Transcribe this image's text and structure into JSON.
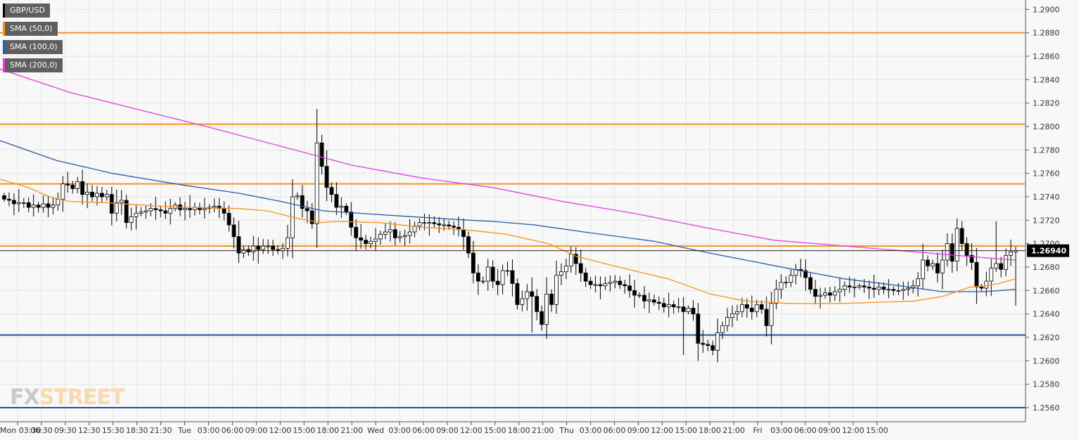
{
  "legend": [
    {
      "label": "GBP/USD",
      "color": "#000000"
    },
    {
      "label": "SMA (50,0)",
      "color": "#f7931e"
    },
    {
      "label": "SMA (100,0)",
      "color": "#2a5aa8"
    },
    {
      "label": "SMA (200,0)",
      "color": "#e040e0"
    }
  ],
  "watermark": {
    "fx": "FX",
    "street": "STREET"
  },
  "colors": {
    "background": "#f8f8f8",
    "grid": "#e4e4e4",
    "candle_outline": "#000000",
    "bull_fill": "#ffffff",
    "bear_fill": "#000000",
    "sma50": "#f7931e",
    "sma100": "#2a5aa8",
    "sma200": "#e040e0",
    "resistance": "#f7931e",
    "support": "#1f4e9c",
    "last_price_bg": "#000000"
  },
  "chart_data": {
    "type": "candlestick",
    "symbol": "GBP/USD",
    "ylim": [
      1.2548,
      1.2908
    ],
    "y_ticks": [
      "1.2560",
      "1.2580",
      "1.2600",
      "1.2620",
      "1.2640",
      "1.2660",
      "1.2680",
      "1.2700",
      "1.2720",
      "1.2740",
      "1.2760",
      "1.2780",
      "1.2800",
      "1.2820",
      "1.2840",
      "1.2860",
      "1.2880",
      "1.2900"
    ],
    "x_ticks": [
      "Mon 03:30",
      "06:30",
      "09:30",
      "12:30",
      "15:30",
      "18:30",
      "21:30",
      "Tue",
      "03:00",
      "06:00",
      "09:00",
      "12:00",
      "15:00",
      "18:00",
      "21:00",
      "Wed",
      "03:00",
      "06:00",
      "09:00",
      "12:00",
      "15:00",
      "18:00",
      "21:00",
      "Thu",
      "03:00",
      "06:00",
      "09:00",
      "12:00",
      "15:00",
      "18:00",
      "21:00",
      "Fri",
      "03:00",
      "06:00",
      "09:00",
      "12:00",
      "15:00"
    ],
    "last_price": "1.26940",
    "last_value": 1.2694,
    "horizontal_levels": [
      {
        "value": 1.288,
        "kind": "resistance"
      },
      {
        "value": 1.2802,
        "kind": "resistance"
      },
      {
        "value": 1.2751,
        "kind": "resistance"
      },
      {
        "value": 1.2698,
        "kind": "resistance"
      },
      {
        "value": 1.2622,
        "kind": "support"
      },
      {
        "value": 1.256,
        "kind": "support"
      }
    ],
    "path": [
      1.2738,
      1.2737,
      1.2734,
      1.2735,
      1.2735,
      1.2731,
      1.2733,
      1.2731,
      1.2734,
      1.2731,
      1.2733,
      1.2738,
      1.2751,
      1.275,
      1.2747,
      1.2753,
      1.2742,
      1.2744,
      1.274,
      1.2743,
      1.274,
      1.2742,
      1.2726,
      1.2735,
      1.2737,
      1.2718,
      1.2723,
      1.2726,
      1.2727,
      1.2728,
      1.273,
      1.2729,
      1.2728,
      1.2726,
      1.273,
      1.2733,
      1.2729,
      1.273,
      1.2729,
      1.2731,
      1.2729,
      1.273,
      1.2731,
      1.2732,
      1.273,
      1.2726,
      1.2716,
      1.2706,
      1.2692,
      1.2695,
      1.2693,
      1.2698,
      1.2695,
      1.2698,
      1.2698,
      1.2695,
      1.2694,
      1.2696,
      1.2705,
      1.274,
      1.2741,
      1.273,
      1.2728,
      1.2717,
      1.2786,
      1.2766,
      1.2748,
      1.2742,
      1.2731,
      1.2732,
      1.2727,
      1.2714,
      1.2705,
      1.2703,
      1.27,
      1.2702,
      1.2704,
      1.2708,
      1.271,
      1.2712,
      1.2705,
      1.2706,
      1.2707,
      1.271,
      1.2715,
      1.2718,
      1.2718,
      1.2718,
      1.2717,
      1.2716,
      1.2716,
      1.2715,
      1.2714,
      1.2712,
      1.2706,
      1.2692,
      1.2675,
      1.2668,
      1.2668,
      1.268,
      1.2668,
      1.2665,
      1.2677,
      1.2677,
      1.2666,
      1.2648,
      1.2653,
      1.2659,
      1.2655,
      1.2642,
      1.2631,
      1.2657,
      1.2648,
      1.2673,
      1.2676,
      1.2681,
      1.2691,
      1.2683,
      1.2675,
      1.2668,
      1.2665,
      1.2665,
      1.2664,
      1.2666,
      1.2667,
      1.2668,
      1.2665,
      1.2664,
      1.266,
      1.2656,
      1.2656,
      1.2651,
      1.2652,
      1.265,
      1.2649,
      1.2646,
      1.2648,
      1.2646,
      1.2646,
      1.2642,
      1.2645,
      1.264,
      1.2615,
      1.2614,
      1.2613,
      1.2609,
      1.2624,
      1.263,
      1.2637,
      1.264,
      1.2642,
      1.2648,
      1.2645,
      1.2642,
      1.2648,
      1.2644,
      1.263,
      1.2649,
      1.2661,
      1.2667,
      1.2667,
      1.2673,
      1.2678,
      1.2677,
      1.2671,
      1.2661,
      1.2655,
      1.2656,
      1.2658,
      1.2656,
      1.2659,
      1.2661,
      1.2664,
      1.2663,
      1.2663,
      1.2664,
      1.2663,
      1.2662,
      1.2661,
      1.2663,
      1.2661,
      1.2661,
      1.266,
      1.266,
      1.2661,
      1.2662,
      1.2664,
      1.267,
      1.2686,
      1.2681,
      1.2683,
      1.2675,
      1.2686,
      1.27,
      1.2685,
      1.2713,
      1.27,
      1.269,
      1.2684,
      1.2663,
      1.2662,
      1.2668,
      1.2679,
      1.2683,
      1.2678,
      1.269,
      1.2693,
      1.2694
    ],
    "sma50": [
      [
        0,
        1.2755
      ],
      [
        40,
        1.2748
      ],
      [
        70,
        1.274
      ],
      [
        100,
        1.2736
      ],
      [
        150,
        1.2735
      ],
      [
        200,
        1.2733
      ],
      [
        260,
        1.2731
      ],
      [
        340,
        1.273
      ],
      [
        380,
        1.2728
      ],
      [
        420,
        1.2722
      ],
      [
        455,
        1.2718
      ],
      [
        480,
        1.2719
      ],
      [
        540,
        1.2718
      ],
      [
        600,
        1.2714
      ],
      [
        660,
        1.2712
      ],
      [
        720,
        1.2708
      ],
      [
        780,
        1.27
      ],
      [
        820,
        1.2689
      ],
      [
        880,
        1.268
      ],
      [
        950,
        1.267
      ],
      [
        1010,
        1.2657
      ],
      [
        1060,
        1.2651
      ],
      [
        1120,
        1.2649
      ],
      [
        1200,
        1.2649
      ],
      [
        1300,
        1.2651
      ],
      [
        1340,
        1.2655
      ],
      [
        1380,
        1.2663
      ],
      [
        1400,
        1.2664
      ],
      [
        1420,
        1.2666
      ],
      [
        1444,
        1.267
      ]
    ],
    "sma100": [
      [
        0,
        1.2788
      ],
      [
        80,
        1.2771
      ],
      [
        160,
        1.276
      ],
      [
        260,
        1.275
      ],
      [
        340,
        1.2743
      ],
      [
        400,
        1.2736
      ],
      [
        460,
        1.2728
      ],
      [
        560,
        1.2724
      ],
      [
        640,
        1.2721
      ],
      [
        700,
        1.2719
      ],
      [
        760,
        1.2716
      ],
      [
        830,
        1.271
      ],
      [
        930,
        1.2702
      ],
      [
        1000,
        1.2693
      ],
      [
        1060,
        1.2686
      ],
      [
        1120,
        1.2679
      ],
      [
        1200,
        1.267
      ],
      [
        1280,
        1.2664
      ],
      [
        1340,
        1.2659
      ],
      [
        1400,
        1.2659
      ],
      [
        1444,
        1.2661
      ]
    ],
    "sma200": [
      [
        0,
        1.2849
      ],
      [
        100,
        1.2829
      ],
      [
        200,
        1.2814
      ],
      [
        300,
        1.2799
      ],
      [
        400,
        1.2783
      ],
      [
        500,
        1.2767
      ],
      [
        600,
        1.2756
      ],
      [
        700,
        1.2748
      ],
      [
        800,
        1.2736
      ],
      [
        900,
        1.2726
      ],
      [
        1000,
        1.2714
      ],
      [
        1100,
        1.2703
      ],
      [
        1200,
        1.2698
      ],
      [
        1300,
        1.2693
      ],
      [
        1400,
        1.2688
      ],
      [
        1444,
        1.2686
      ]
    ]
  }
}
